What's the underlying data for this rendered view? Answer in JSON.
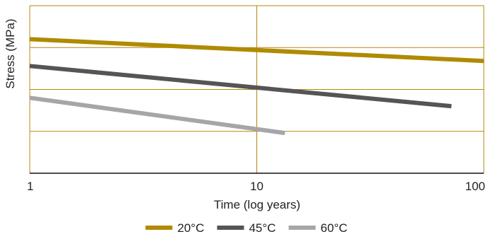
{
  "chart_data": {
    "type": "line",
    "x_scale": "log",
    "xlim": [
      1,
      100
    ],
    "x_ticks": [
      1,
      10,
      100
    ],
    "x_tick_labels": [
      "1",
      "10",
      "100"
    ],
    "xlabel": "Time (log years)",
    "ylabel": "Stress (MPa)",
    "y_tick_labels_shown": false,
    "y_gridline_count": 4,
    "grid": true,
    "grid_color": "#b8860b",
    "legend_placement": "bottom-center",
    "series": [
      {
        "name": "20°C",
        "color": "#b08a00",
        "x": [
          1,
          100
        ],
        "y": [
          0.8,
          0.67
        ]
      },
      {
        "name": "45°C",
        "color": "#555555",
        "x": [
          1,
          72
        ],
        "y": [
          0.64,
          0.4
        ]
      },
      {
        "name": "60°C",
        "color": "#a6a6a8",
        "x": [
          1,
          13.3
        ],
        "y": [
          0.45,
          0.24
        ]
      }
    ]
  }
}
